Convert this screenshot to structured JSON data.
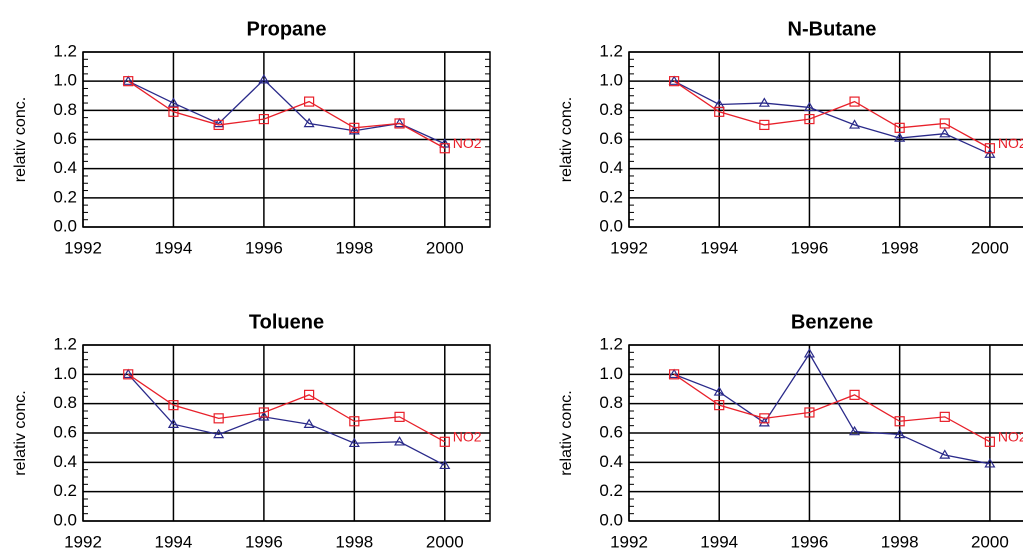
{
  "chart_data": [
    {
      "type": "line",
      "title": "Propane",
      "ylabel": "relativ conc.",
      "x": [
        1993,
        1994,
        1995,
        1996,
        1997,
        1998,
        1999,
        2000
      ],
      "series": [
        {
          "color": "#2a2a8a",
          "marker": "triangle",
          "values": [
            1.0,
            0.85,
            0.71,
            1.01,
            0.71,
            0.66,
            0.71,
            0.57
          ]
        },
        {
          "name": "NO2",
          "color": "#e8202a",
          "marker": "square",
          "values": [
            1.0,
            0.79,
            0.7,
            0.74,
            0.86,
            0.68,
            0.71,
            0.54
          ]
        }
      ],
      "xlim": [
        1992,
        2001
      ],
      "xticks": [
        1992,
        1994,
        1996,
        1998,
        2000
      ],
      "ylim": [
        0,
        1.2
      ],
      "yticks": [
        {
          "value": 0,
          "label": "0.0"
        },
        0.2,
        0.4,
        0.6,
        0.8,
        {
          "value": 1,
          "label": "1.0"
        },
        1.2
      ],
      "grid": true
    },
    {
      "type": "line",
      "title": "N-Butane",
      "ylabel": "relativ conc.",
      "x": [
        1993,
        1994,
        1995,
        1996,
        1997,
        1998,
        1999,
        2000
      ],
      "series": [
        {
          "color": "#2a2a8a",
          "marker": "triangle",
          "values": [
            1.0,
            0.84,
            0.85,
            0.82,
            0.7,
            0.61,
            0.64,
            0.5
          ]
        },
        {
          "name": "NO2",
          "color": "#e8202a",
          "marker": "square",
          "values": [
            1.0,
            0.79,
            0.7,
            0.74,
            0.86,
            0.68,
            0.71,
            0.54
          ]
        }
      ],
      "xlim": [
        1992,
        2001
      ],
      "xticks": [
        1992,
        1994,
        1996,
        1998,
        2000
      ],
      "ylim": [
        0,
        1.2
      ],
      "yticks": [
        {
          "value": 0,
          "label": "0.0"
        },
        0.2,
        0.4,
        0.6,
        0.8,
        {
          "value": 1,
          "label": "1.0"
        },
        1.2
      ],
      "grid": true
    },
    {
      "type": "line",
      "title": "Toluene",
      "ylabel": "relativ conc.",
      "x": [
        1993,
        1994,
        1995,
        1996,
        1997,
        1998,
        1999,
        2000
      ],
      "series": [
        {
          "color": "#2a2a8a",
          "marker": "triangle",
          "values": [
            1.0,
            0.66,
            0.59,
            0.71,
            0.66,
            0.53,
            0.54,
            0.38
          ]
        },
        {
          "name": "NO2",
          "color": "#e8202a",
          "marker": "square",
          "values": [
            1.0,
            0.79,
            0.7,
            0.74,
            0.86,
            0.68,
            0.71,
            0.54
          ]
        }
      ],
      "xlim": [
        1992,
        2001
      ],
      "xticks": [
        1992,
        1994,
        1996,
        1998,
        2000
      ],
      "ylim": [
        0,
        1.2
      ],
      "yticks": [
        {
          "value": 0,
          "label": "0.0"
        },
        0.2,
        0.4,
        0.6,
        0.8,
        {
          "value": 1,
          "label": "1.0"
        },
        1.2
      ],
      "grid": true
    },
    {
      "type": "line",
      "title": "Benzene",
      "ylabel": "relativ conc.",
      "x": [
        1993,
        1994,
        1995,
        1996,
        1997,
        1998,
        1999,
        2000
      ],
      "series": [
        {
          "color": "#2a2a8a",
          "marker": "triangle",
          "values": [
            1.0,
            0.88,
            0.67,
            1.14,
            0.61,
            0.59,
            0.45,
            0.39
          ]
        },
        {
          "name": "NO2",
          "color": "#e8202a",
          "marker": "square",
          "values": [
            1.0,
            0.79,
            0.7,
            0.74,
            0.86,
            0.68,
            0.71,
            0.54
          ]
        }
      ],
      "xlim": [
        1992,
        2001
      ],
      "xticks": [
        1992,
        1994,
        1996,
        1998,
        2000
      ],
      "ylim": [
        0,
        1.2
      ],
      "yticks": [
        {
          "value": 0,
          "label": "0.0"
        },
        0.2,
        0.4,
        0.6,
        0.8,
        {
          "value": 1,
          "label": "1.0"
        },
        1.2
      ],
      "grid": true
    }
  ]
}
